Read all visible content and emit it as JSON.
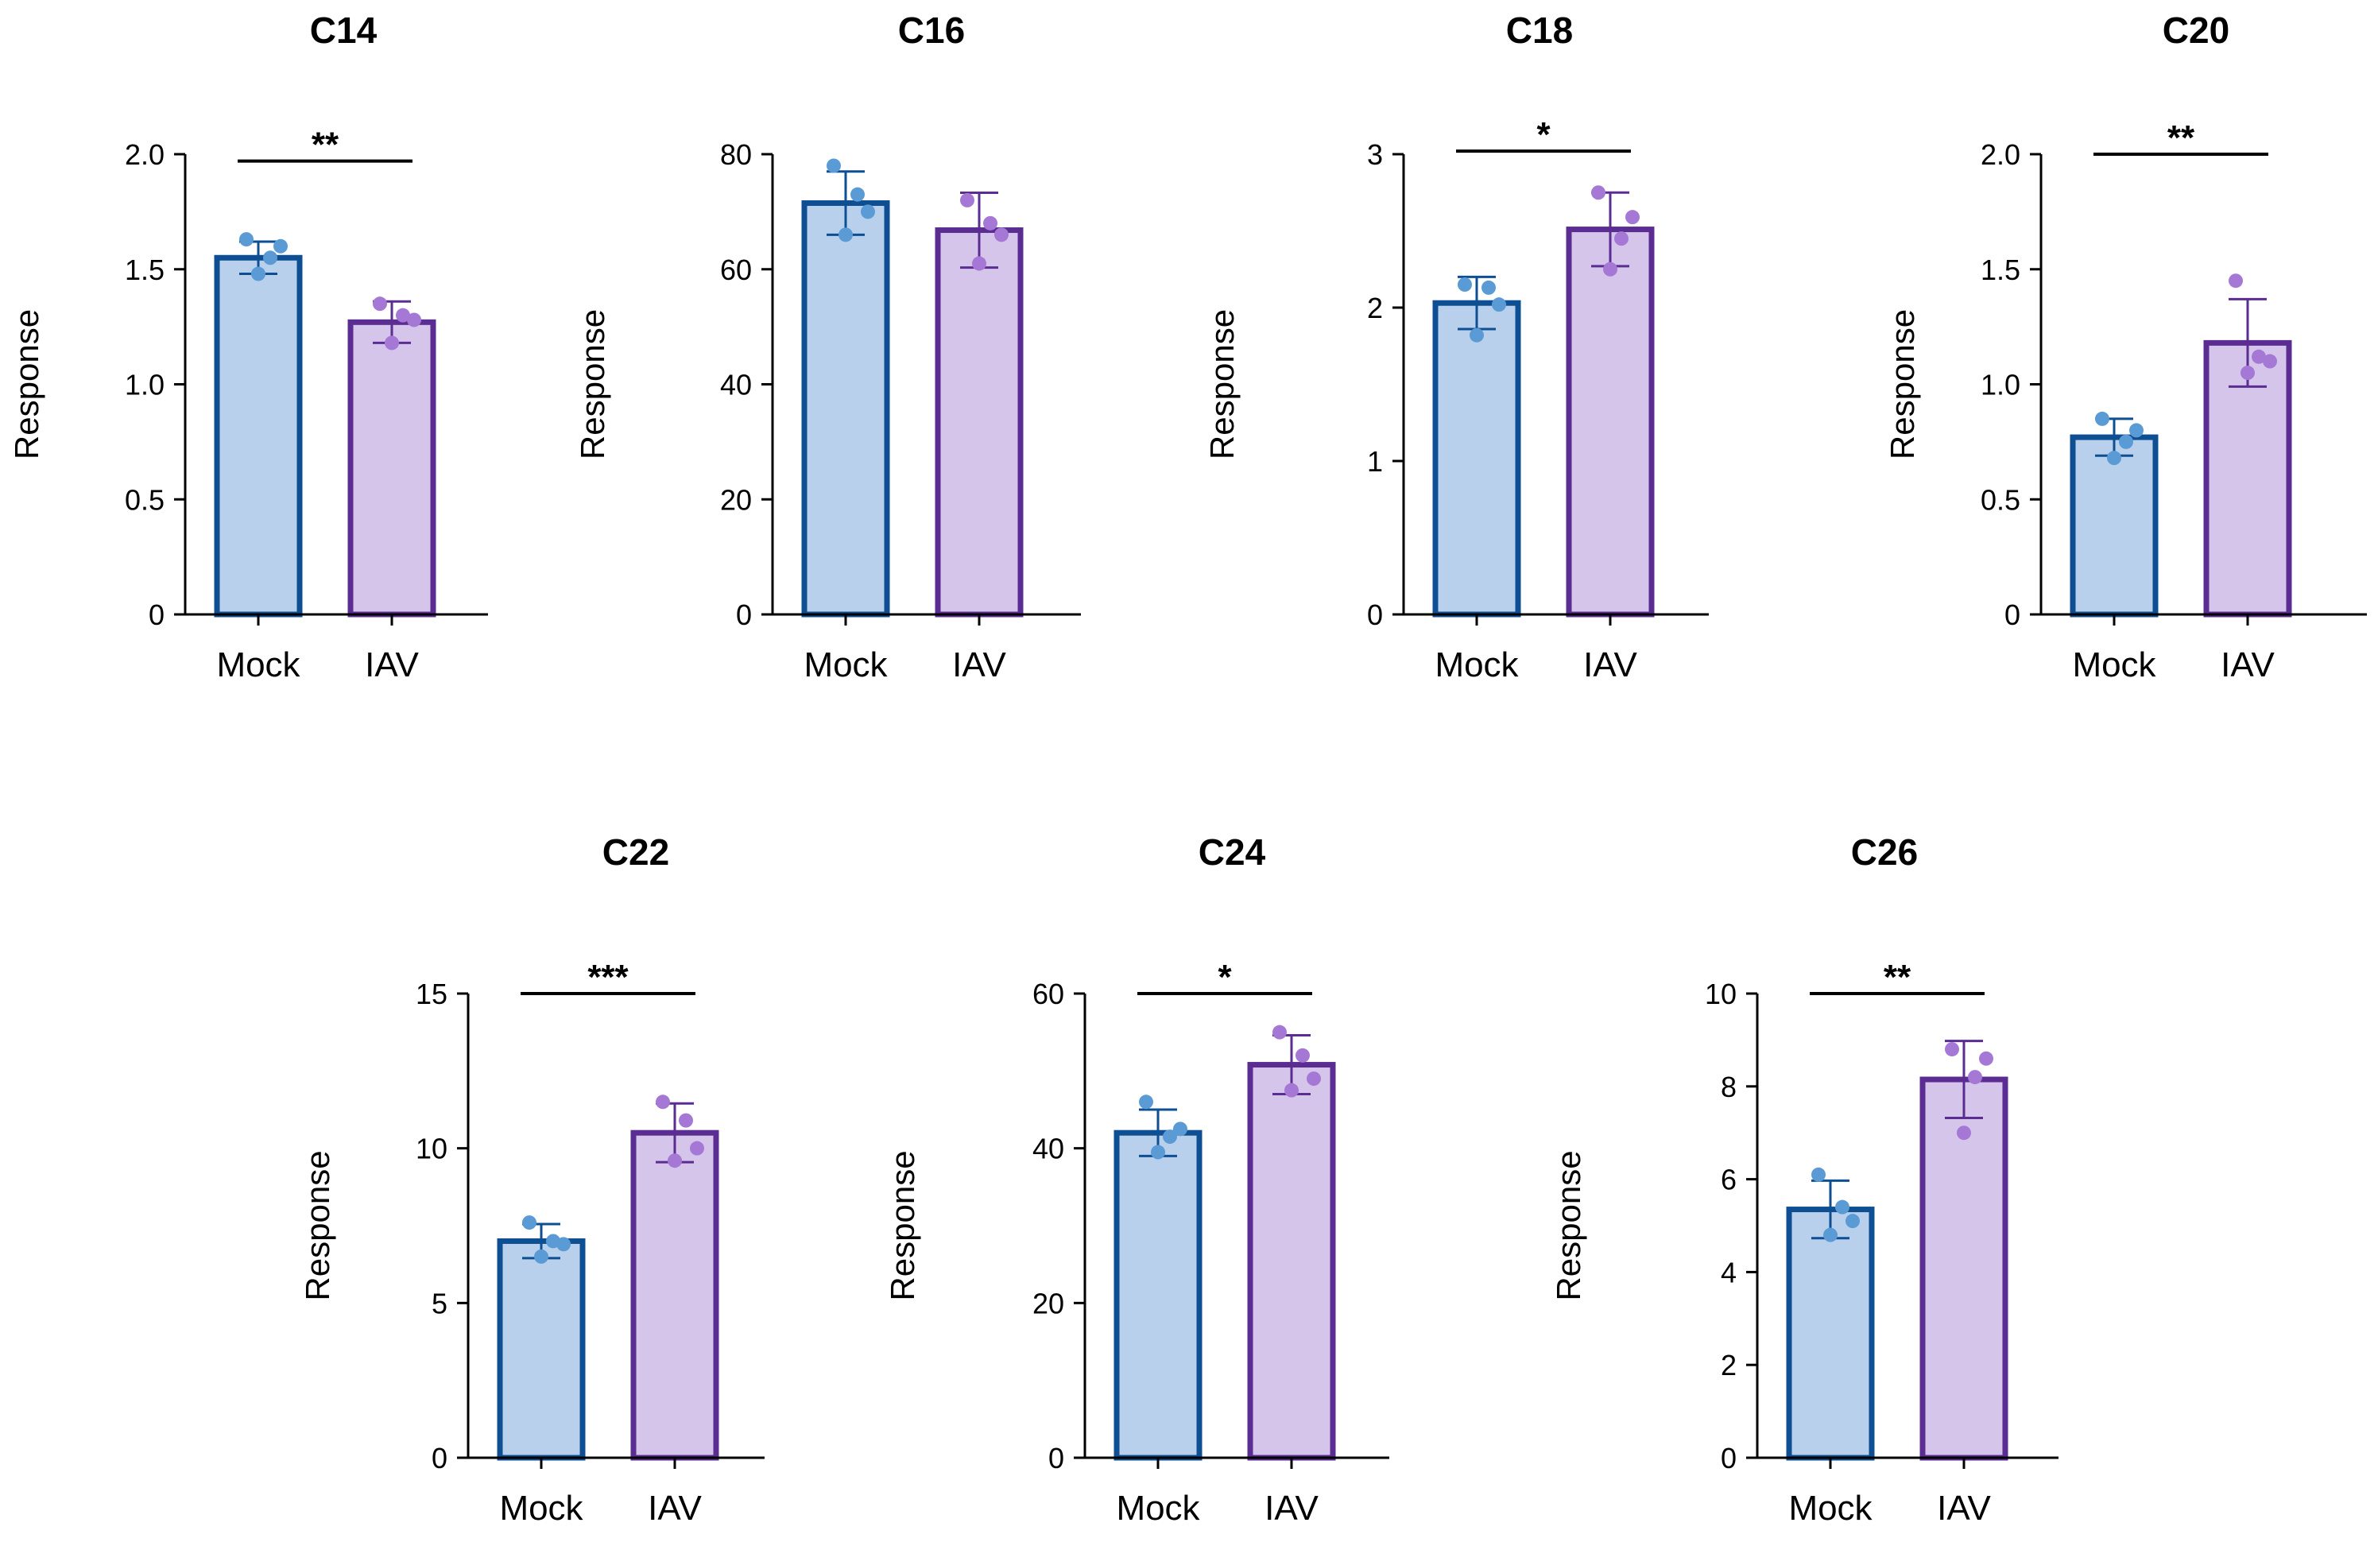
{
  "colors": {
    "mock_fill": "#b9d0ec",
    "mock_stroke": "#0e4f93",
    "mock_dot": "#5b9bd5",
    "iav_fill": "#d6c5eb",
    "iav_stroke": "#5b2d92",
    "iav_dot": "#a678d6",
    "axis": "#000000"
  },
  "chart_data": [
    {
      "type": "bar",
      "title": "C14",
      "ylabel": "Response",
      "categories": [
        "Mock",
        "IAV"
      ],
      "values": [
        1.55,
        1.27
      ],
      "errors": [
        0.07,
        0.09
      ],
      "points": [
        [
          1.63,
          1.55,
          1.48,
          1.6
        ],
        [
          1.35,
          1.3,
          1.18,
          1.28
        ]
      ],
      "ylim": [
        0,
        2.0
      ],
      "yticks": [
        "0",
        "0.5",
        "1.0",
        "1.5",
        "2.0"
      ],
      "ytick_values": [
        0,
        0.5,
        1.0,
        1.5,
        2.0
      ],
      "significance": "**",
      "sig_value": 1.97
    },
    {
      "type": "bar",
      "title": "C16",
      "ylabel": "Response",
      "categories": [
        "Mock",
        "IAV"
      ],
      "values": [
        71.5,
        66.8
      ],
      "errors": [
        5.5,
        6.5
      ],
      "points": [
        [
          78,
          73,
          66,
          70
        ],
        [
          72,
          68,
          61,
          66
        ]
      ],
      "ylim": [
        0,
        80
      ],
      "yticks": [
        "0",
        "20",
        "40",
        "60",
        "80"
      ],
      "ytick_values": [
        0,
        20,
        40,
        60,
        80
      ],
      "significance": "",
      "sig_value": null
    },
    {
      "type": "bar",
      "title": "C18",
      "ylabel": "Response",
      "categories": [
        "Mock",
        "IAV"
      ],
      "values": [
        2.03,
        2.51
      ],
      "errors": [
        0.17,
        0.24
      ],
      "points": [
        [
          2.15,
          2.13,
          1.82,
          2.02
        ],
        [
          2.75,
          2.45,
          2.25,
          2.59
        ]
      ],
      "ylim": [
        0,
        3
      ],
      "yticks": [
        "0",
        "1",
        "2",
        "3"
      ],
      "ytick_values": [
        0,
        1,
        2,
        3
      ],
      "significance": "*",
      "sig_value": 3.02
    },
    {
      "type": "bar",
      "title": "C20",
      "ylabel": "Response",
      "categories": [
        "Mock",
        "IAV"
      ],
      "values": [
        0.77,
        1.18
      ],
      "errors": [
        0.08,
        0.19
      ],
      "points": [
        [
          0.85,
          0.75,
          0.68,
          0.8
        ],
        [
          1.45,
          1.12,
          1.05,
          1.1
        ]
      ],
      "ylim": [
        0,
        2.0
      ],
      "yticks": [
        "0",
        "0.5",
        "1.0",
        "1.5",
        "2.0"
      ],
      "ytick_values": [
        0,
        0.5,
        1.0,
        1.5,
        2.0
      ],
      "significance": "**",
      "sig_value": 2.0
    },
    {
      "type": "bar",
      "title": "C22",
      "ylabel": "Response",
      "categories": [
        "Mock",
        "IAV"
      ],
      "values": [
        7.0,
        10.5
      ],
      "errors": [
        0.55,
        0.95
      ],
      "points": [
        [
          7.6,
          7.0,
          6.5,
          6.9
        ],
        [
          11.5,
          10.9,
          9.6,
          10.0
        ]
      ],
      "ylim": [
        0,
        15
      ],
      "yticks": [
        "0",
        "5",
        "10",
        "15"
      ],
      "ytick_values": [
        0,
        5,
        10,
        15
      ],
      "significance": "***",
      "sig_value": 15.0
    },
    {
      "type": "bar",
      "title": "C24",
      "ylabel": "Response",
      "categories": [
        "Mock",
        "IAV"
      ],
      "values": [
        42.0,
        50.8
      ],
      "errors": [
        3.0,
        3.8
      ],
      "points": [
        [
          46.0,
          41.5,
          39.5,
          42.5
        ],
        [
          55.0,
          52.0,
          47.5,
          49.0
        ]
      ],
      "ylim": [
        0,
        60
      ],
      "yticks": [
        "0",
        "20",
        "40",
        "60"
      ],
      "ytick_values": [
        0,
        20,
        40,
        60
      ],
      "significance": "*",
      "sig_value": 60.0
    },
    {
      "type": "bar",
      "title": "C26",
      "ylabel": "Response",
      "categories": [
        "Mock",
        "IAV"
      ],
      "values": [
        5.35,
        8.15
      ],
      "errors": [
        0.62,
        0.83
      ],
      "points": [
        [
          6.1,
          5.4,
          4.8,
          5.1
        ],
        [
          8.8,
          8.2,
          7.0,
          8.6
        ]
      ],
      "ylim": [
        0,
        10
      ],
      "yticks": [
        "0",
        "2",
        "4",
        "6",
        "8",
        "10"
      ],
      "ytick_values": [
        0,
        2,
        4,
        6,
        8,
        10
      ],
      "significance": "**",
      "sig_value": 10.0
    }
  ]
}
